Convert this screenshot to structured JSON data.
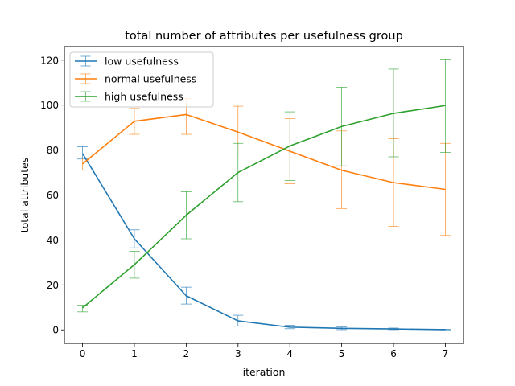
{
  "chart_data": {
    "type": "line",
    "title": "total number of attributes per usefulness group",
    "xlabel": "iteration",
    "ylabel": "total attributes",
    "x": [
      0,
      1,
      2,
      3,
      4,
      5,
      6,
      7
    ],
    "xlim": [
      -0.35,
      7.35
    ],
    "ylim": [
      -6,
      126
    ],
    "xticks": [
      0,
      1,
      2,
      3,
      4,
      5,
      6,
      7
    ],
    "yticks": [
      0,
      20,
      40,
      60,
      80,
      100,
      120
    ],
    "grid": false,
    "legend_position": "top-left",
    "series": [
      {
        "name": "low usefulness",
        "color": "#1f77b4",
        "values": [
          78.5,
          40.5,
          15.2,
          4.0,
          1.2,
          0.7,
          0.4,
          0.1
        ],
        "err_low": [
          76.0,
          36.5,
          11.5,
          1.6,
          0.5,
          0.1,
          0.1,
          0.0
        ],
        "err_high": [
          81.5,
          44.5,
          19.0,
          6.5,
          2.0,
          1.3,
          0.8,
          0.3
        ]
      },
      {
        "name": "normal usefulness",
        "color": "#ff7f0e",
        "values": [
          73.8,
          92.8,
          95.8,
          88.0,
          79.5,
          71.0,
          65.5,
          62.5
        ],
        "err_low": [
          71.0,
          87.0,
          87.0,
          76.5,
          65.0,
          54.0,
          46.0,
          42.0
        ],
        "err_high": [
          76.5,
          98.5,
          103.0,
          99.5,
          94.0,
          88.5,
          85.0,
          83.0
        ]
      },
      {
        "name": "high usefulness",
        "color": "#2ca02c",
        "values": [
          9.8,
          29.0,
          51.0,
          70.0,
          81.8,
          90.5,
          96.3,
          99.8
        ],
        "err_low": [
          8.0,
          23.0,
          40.5,
          57.0,
          66.5,
          73.0,
          77.0,
          79.0
        ],
        "err_high": [
          11.0,
          35.0,
          61.5,
          83.0,
          97.0,
          108.0,
          116.0,
          120.5
        ]
      }
    ]
  }
}
